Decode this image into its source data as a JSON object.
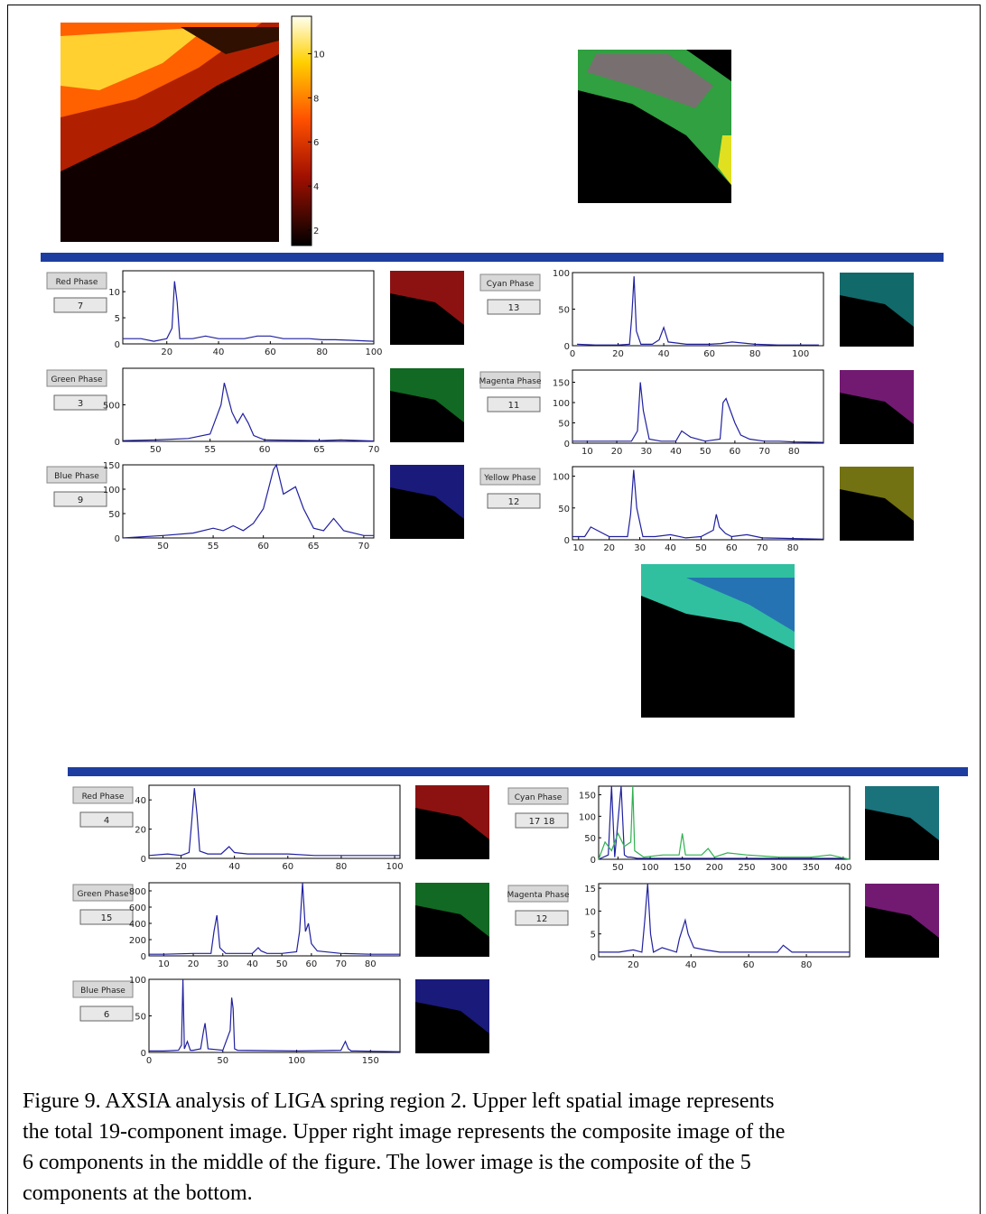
{
  "figure": {
    "colorbar": {
      "clim": [
        1.3,
        11.7
      ],
      "ticks": [
        2,
        4,
        6,
        8,
        10
      ]
    },
    "panels": [
      {
        "button": "Red Phase",
        "box": "7",
        "xlim": [
          3,
          100
        ],
        "ylim": [
          0,
          14
        ],
        "xticks": [
          20,
          40,
          60,
          80,
          100
        ],
        "yticks": [
          0,
          5,
          10
        ],
        "image_color": "#ff2020",
        "series": [
          {
            "color": "#2020a0",
            "x": [
              3,
              10,
              15,
              20,
              22,
              23,
              24,
              25,
              30,
              35,
              40,
              45,
              50,
              55,
              60,
              65,
              70,
              75,
              80,
              85,
              90,
              95,
              100
            ],
            "values": [
              1,
              1,
              0.5,
              1,
              3,
              12,
              8,
              1,
              1,
              1.5,
              1,
              1,
              1,
              1.5,
              1.5,
              1,
              1,
              1,
              0.8,
              0.8,
              0.7,
              0.6,
              0.5
            ]
          }
        ]
      },
      {
        "button": "Cyan Phase",
        "box": "13",
        "xlim": [
          0,
          110
        ],
        "ylim": [
          0,
          100
        ],
        "xticks": [
          0,
          20,
          40,
          60,
          80,
          100
        ],
        "yticks": [
          0,
          50,
          100
        ],
        "image_color": "#20c0c0",
        "series": [
          {
            "color": "#2020a0",
            "x": [
              2,
              10,
              20,
              25,
              26,
              27,
              28,
              30,
              35,
              38,
              40,
              42,
              50,
              60,
              65,
              70,
              80,
              90,
              100,
              108
            ],
            "values": [
              2,
              1,
              1,
              2,
              40,
              95,
              20,
              2,
              2,
              8,
              25,
              5,
              2,
              2,
              3,
              5,
              2,
              1,
              1,
              1
            ]
          }
        ]
      },
      {
        "button": "Green Phase",
        "box": "3",
        "xlim": [
          47,
          70
        ],
        "ylim": [
          0,
          1000
        ],
        "xticks": [
          50,
          55,
          60,
          65,
          70
        ],
        "yticks": [
          0,
          500
        ],
        "image_color": "#20c040",
        "series": [
          {
            "color": "#2020a0",
            "x": [
              47,
              50,
              53,
              55,
              56,
              56.3,
              57,
              57.5,
              58,
              58.5,
              59,
              60,
              65,
              67,
              70
            ],
            "values": [
              10,
              20,
              40,
              100,
              500,
              800,
              400,
              250,
              380,
              250,
              80,
              20,
              10,
              20,
              5
            ]
          }
        ]
      },
      {
        "button": "Magenta Phase",
        "box": "11",
        "xlim": [
          5,
          90
        ],
        "ylim": [
          0,
          180
        ],
        "xticks": [
          10,
          20,
          30,
          40,
          50,
          60,
          70,
          80
        ],
        "yticks": [
          0,
          50,
          100,
          150
        ],
        "image_color": "#d030d0",
        "series": [
          {
            "color": "#2020a0",
            "x": [
              5,
              10,
              20,
              25,
              27,
              28,
              29,
              31,
              35,
              40,
              42,
              45,
              50,
              55,
              56,
              57,
              58,
              60,
              62,
              65,
              70,
              75,
              80,
              90
            ],
            "values": [
              5,
              5,
              5,
              5,
              30,
              150,
              80,
              10,
              5,
              5,
              30,
              15,
              5,
              10,
              100,
              110,
              90,
              50,
              20,
              10,
              5,
              5,
              3,
              2
            ]
          }
        ]
      },
      {
        "button": "Blue Phase",
        "box": "9",
        "xlim": [
          46,
          71
        ],
        "ylim": [
          0,
          150
        ],
        "xticks": [
          50,
          55,
          60,
          65,
          70
        ],
        "yticks": [
          0,
          50,
          100,
          150
        ],
        "image_color": "#3030e0",
        "series": [
          {
            "color": "#2020a0",
            "x": [
              46,
              50,
              53,
              55,
              56,
              57,
              58,
              59,
              60,
              61,
              61.3,
              62,
              63.2,
              64,
              65,
              66,
              67,
              68,
              70,
              71
            ],
            "values": [
              0,
              5,
              10,
              20,
              15,
              25,
              15,
              30,
              60,
              140,
              150,
              90,
              105,
              60,
              20,
              15,
              40,
              15,
              5,
              5
            ]
          }
        ]
      },
      {
        "button": "Yellow Phase",
        "box": "12",
        "xlim": [
          8,
          90
        ],
        "ylim": [
          0,
          115
        ],
        "xticks": [
          10,
          20,
          30,
          40,
          50,
          60,
          70,
          80
        ],
        "yticks": [
          0,
          50,
          100
        ],
        "image_color": "#d0d020",
        "series": [
          {
            "color": "#2020a0",
            "x": [
              8,
              12,
              14,
              20,
              26,
              27,
              28,
              29,
              31,
              35,
              40,
              45,
              50,
              54,
              55,
              56,
              58,
              60,
              65,
              70,
              80,
              90
            ],
            "values": [
              5,
              5,
              20,
              5,
              5,
              40,
              110,
              50,
              5,
              5,
              8,
              3,
              5,
              15,
              40,
              20,
              10,
              5,
              8,
              3,
              2,
              1
            ]
          }
        ]
      },
      {
        "button": "Red Phase",
        "box": "4",
        "xlim": [
          8,
          102
        ],
        "ylim": [
          0,
          50
        ],
        "xticks": [
          20,
          40,
          60,
          80,
          100
        ],
        "yticks": [
          0,
          20,
          40
        ],
        "image_color": "#ff2020",
        "series": [
          {
            "color": "#2020a0",
            "x": [
              8,
              15,
              20,
              23,
              24,
              25,
              26,
              27,
              30,
              35,
              38,
              40,
              45,
              50,
              60,
              70,
              80,
              90,
              100,
              102
            ],
            "values": [
              2,
              3,
              2,
              4,
              25,
              48,
              30,
              5,
              3,
              3,
              8,
              4,
              3,
              3,
              3,
              2,
              2,
              2,
              2,
              2
            ]
          }
        ]
      },
      {
        "button": "Cyan Phase",
        "box": "17 18",
        "xlim": [
          20,
          410
        ],
        "ylim": [
          0,
          170
        ],
        "xticks": [
          50,
          100,
          150,
          200,
          250,
          300,
          350,
          400
        ],
        "yticks": [
          0,
          50,
          100,
          150
        ],
        "image_color": "#30d0e0",
        "series": [
          {
            "color": "#2020a0",
            "x": [
              20,
              35,
              40,
              45,
              55,
              60,
              65,
              70,
              80,
              100,
              200,
              300,
              400,
              410
            ],
            "values": [
              0,
              10,
              170,
              5,
              170,
              10,
              5,
              5,
              2,
              2,
              2,
              2,
              2,
              0
            ]
          },
          {
            "color": "#30b050",
            "x": [
              20,
              30,
              40,
              50,
              60,
              70,
              73,
              76,
              90,
              120,
              145,
              150,
              155,
              180,
              190,
              200,
              220,
              250,
              300,
              350,
              380,
              400,
              410
            ],
            "values": [
              0,
              40,
              20,
              60,
              30,
              40,
              170,
              20,
              5,
              10,
              10,
              60,
              10,
              10,
              25,
              5,
              15,
              10,
              5,
              5,
              10,
              3,
              0
            ]
          }
        ]
      },
      {
        "button": "Green Phase",
        "box": "15",
        "xlim": [
          5,
          90
        ],
        "ylim": [
          0,
          900
        ],
        "xticks": [
          10,
          20,
          30,
          40,
          50,
          60,
          70,
          80
        ],
        "yticks": [
          0,
          200,
          400,
          600,
          800
        ],
        "image_color": "#20c040",
        "series": [
          {
            "color": "#2020a0",
            "x": [
              5,
              10,
              20,
              26,
              27,
              28,
              29,
              31,
              40,
              42,
              43,
              45,
              50,
              55,
              56,
              57,
              58,
              59,
              60,
              62,
              70,
              80,
              90
            ],
            "values": [
              20,
              20,
              30,
              30,
              300,
              500,
              100,
              30,
              30,
              100,
              60,
              30,
              30,
              50,
              300,
              900,
              300,
              400,
              150,
              60,
              30,
              20,
              20
            ]
          }
        ]
      },
      {
        "button": "Magenta Phase",
        "box": "12",
        "xlim": [
          8,
          95
        ],
        "ylim": [
          0,
          16
        ],
        "xticks": [
          20,
          40,
          60,
          80
        ],
        "yticks": [
          0,
          5,
          10,
          15
        ],
        "image_color": "#d030d0",
        "series": [
          {
            "color": "#2020a0",
            "x": [
              8,
              15,
              20,
              23,
              24,
              25,
              26,
              27,
              30,
              35,
              36,
              38,
              39,
              41,
              45,
              50,
              60,
              70,
              72,
              75,
              80,
              90,
              95
            ],
            "values": [
              1,
              1,
              1.5,
              1,
              8,
              16,
              5,
              1,
              2,
              1,
              4,
              8,
              5,
              2,
              1.5,
              1,
              1,
              1,
              2.5,
              1,
              1,
              1,
              1
            ]
          }
        ]
      },
      {
        "button": "Blue Phase",
        "box": "6",
        "xlim": [
          0,
          170
        ],
        "ylim": [
          0,
          100
        ],
        "xticks": [
          0,
          50,
          100,
          150
        ],
        "yticks": [
          0,
          50,
          100
        ],
        "image_color": "#3030e0",
        "series": [
          {
            "color": "#2020a0",
            "x": [
              0,
              10,
              20,
              22,
              23,
              24,
              26,
              28,
              30,
              35,
              37,
              38,
              40,
              50,
              55,
              56,
              57,
              58,
              60,
              100,
              130,
              133,
              135,
              137,
              140,
              170
            ],
            "values": [
              2,
              2,
              3,
              10,
              100,
              5,
              15,
              3,
              3,
              5,
              30,
              40,
              5,
              3,
              30,
              75,
              60,
              5,
              3,
              2,
              3,
              15,
              5,
              2,
              2,
              1
            ]
          }
        ]
      }
    ],
    "caption": [
      "Figure 9. AXSIA analysis of LIGA spring region 2. Upper left spatial image represents",
      "the total 19-component image. Upper right image represents the composite image of the",
      "6 components in the middle of the figure. The lower image is the composite of the 5",
      "components at the bottom."
    ]
  }
}
